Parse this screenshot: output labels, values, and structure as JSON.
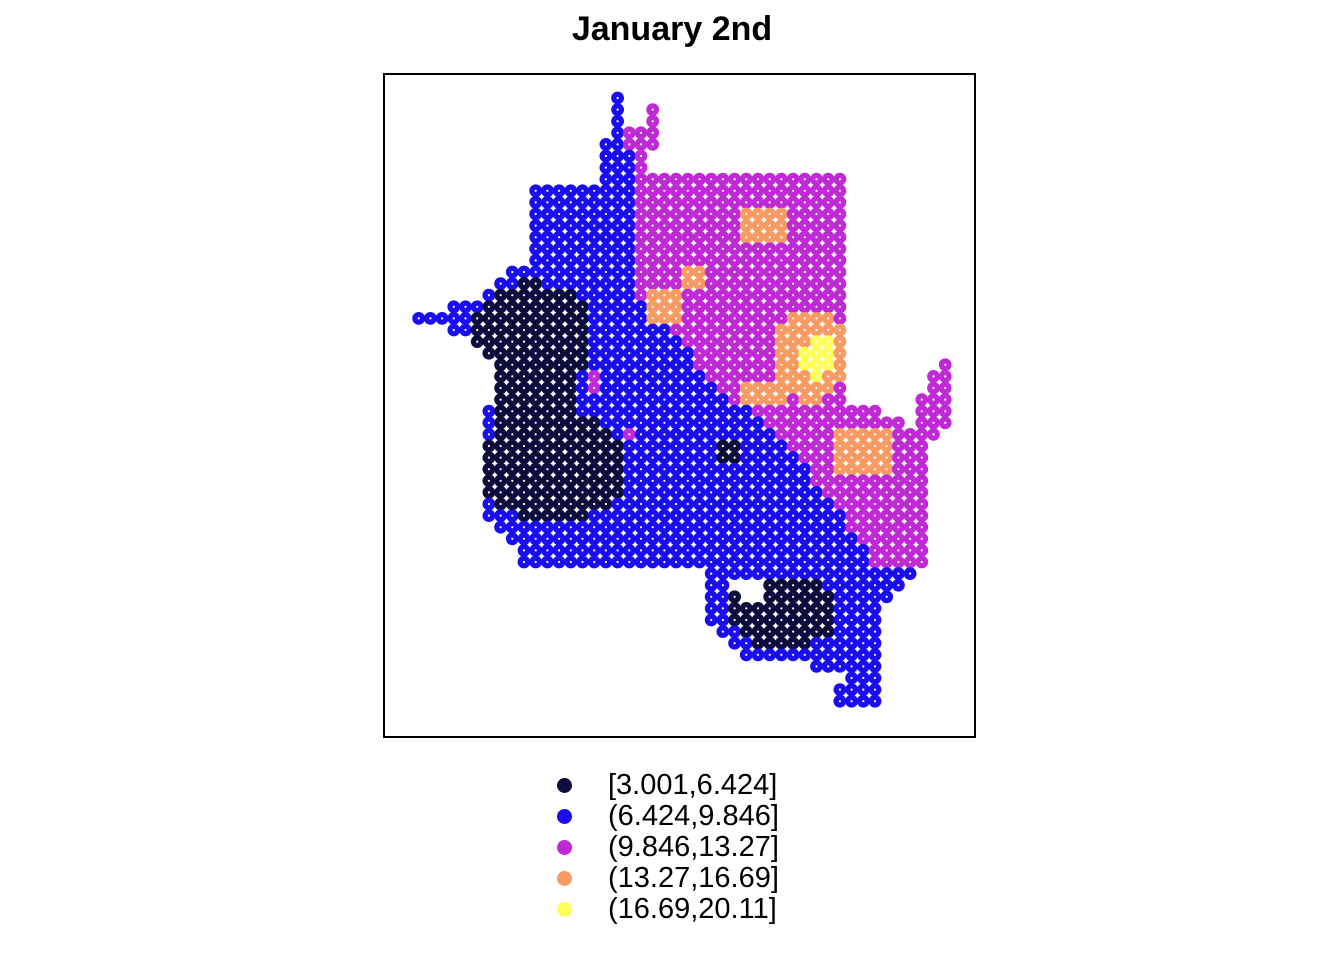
{
  "title": "January 2nd",
  "colors": {
    "c1": "#0d0d3d",
    "c2": "#1a0df0",
    "c3": "#c02ad6",
    "c4": "#f79a63",
    "c5": "#ffff59"
  },
  "legend": [
    {
      "label": "[3.001,6.424]",
      "color": "#0d0d3d"
    },
    {
      "label": "(6.424,9.846]",
      "color": "#1a0df0"
    },
    {
      "label": "(9.846,13.27]",
      "color": "#c02ad6"
    },
    {
      "label": "(13.27,16.69]",
      "color": "#f79a63"
    },
    {
      "label": "(16.69,20.11]",
      "color": "#ffff59"
    }
  ]
}
